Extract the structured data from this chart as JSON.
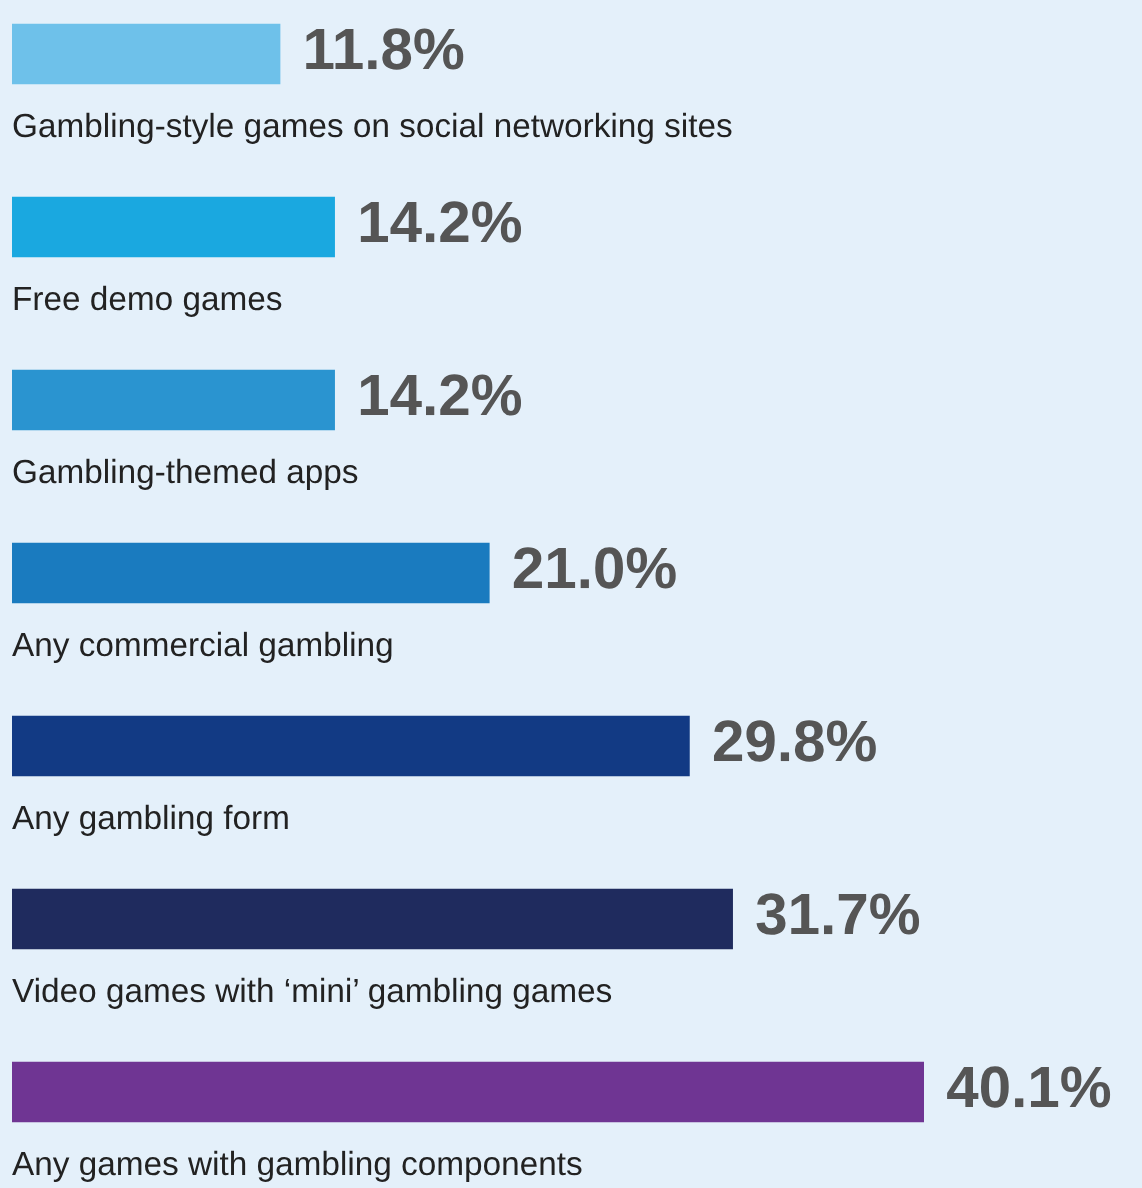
{
  "chart_data": {
    "type": "bar",
    "orientation": "horizontal",
    "categories": [
      "Gambling-style games on social networking sites",
      "Free demo games",
      "Gambling-themed apps",
      "Any commercial gambling",
      "Any gambling form",
      "Video games with ‘mini’ gambling games",
      "Any games with gambling components"
    ],
    "values": [
      11.8,
      14.2,
      14.2,
      21.0,
      29.8,
      31.7,
      40.1
    ],
    "value_labels": [
      "11.8%",
      "14.2%",
      "14.2%",
      "21.0%",
      "29.8%",
      "31.7%",
      "40.1%"
    ],
    "colors": [
      "#6ec1ea",
      "#1aa8e0",
      "#2a94d0",
      "#1a7bbf",
      "#123a84",
      "#1f2b5e",
      "#6f3593"
    ]
  }
}
